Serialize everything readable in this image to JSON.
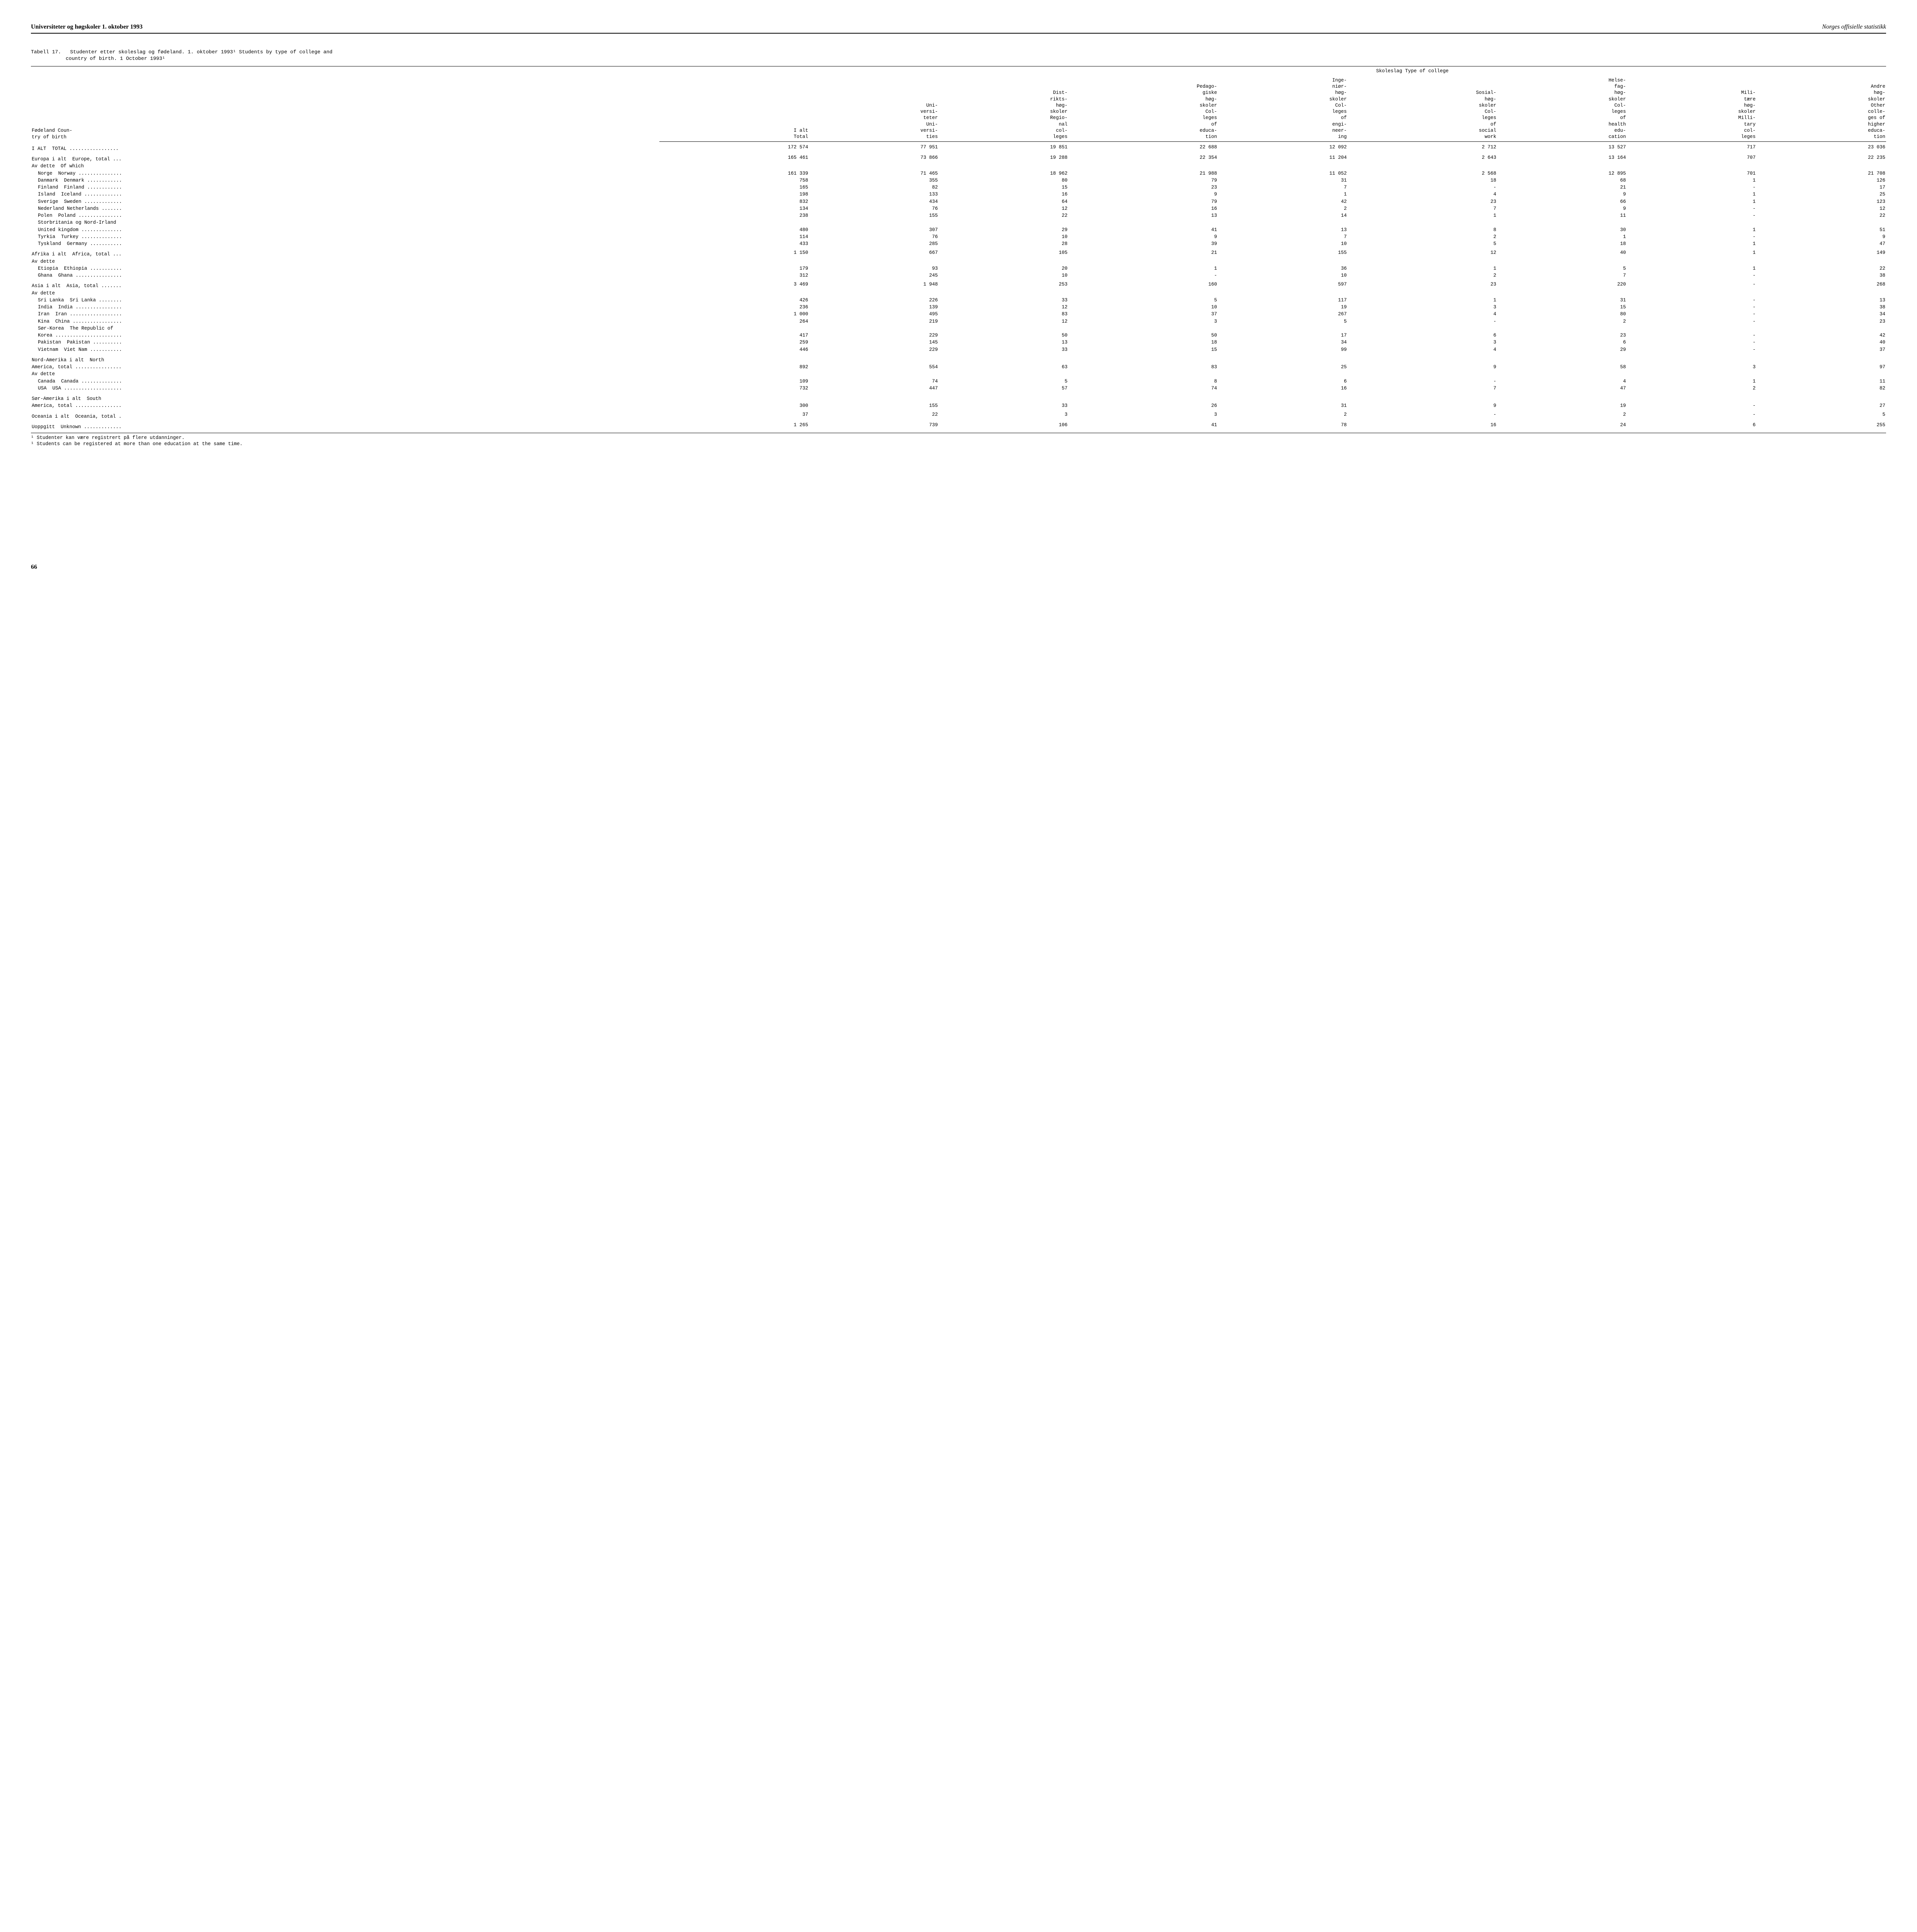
{
  "header": {
    "left": "Universiteter og høgskoler 1. oktober 1993",
    "right": "Norges offisielle statistikk"
  },
  "table_caption": {
    "no": "Tabell 17.",
    "title1": "Studenter etter skoleslag og fødeland. 1. oktober 1993¹  Students by type of college and",
    "title2": "country of birth.  1 October 1993¹"
  },
  "columns": {
    "c0": "Fødeland  Coun-\ntry of birth",
    "span": "Skoleslag  Type of college",
    "c1": "I alt\nTotal",
    "c2": "Uni-\nversi-\nteter\nUni-\nversi-\nties",
    "c3": "Dist-\nrikts-\nhøg-\nskoler\nRegio-\nnal\ncol-\nleges",
    "c4": "Pedago-\ngiske\nhøg-\nskoler\nCol-\nleges\nof\neduca-\ntion",
    "c5": "Inge-\nniør-\nhøg-\nskoler\nCol-\nleges\nof\nengi-\nneer-\ning",
    "c6": "Sosial-\nhøg-\nskoler\nCol-\nleges\nof\nsocial\nwork",
    "c7": "Helse-\nfag-\nhøg-\nskoler\nCol-\nleges\nof\nhealth\nedu-\ncation",
    "c8": "Mili-\ntære\nhøg-\nskoler\nMilli-\ntary\ncol-\nleges",
    "c9": "Andre\nhøg-\nskoler\nOther\ncolle-\nges of\nhigher\neduca-\ntion"
  },
  "rows": [
    {
      "label": "I ALT  TOTAL .................",
      "v": [
        "172 574",
        "77 951",
        "19 851",
        "22 688",
        "12 092",
        "2 712",
        "13 527",
        "717",
        "23 036"
      ],
      "group": true
    },
    {
      "label": "Europa i alt  Europe, total ...",
      "v": [
        "165 461",
        "73 866",
        "19 288",
        "22 354",
        "11 204",
        "2 643",
        "13 164",
        "707",
        "22 235"
      ],
      "group": true
    },
    {
      "label": "Av dette  Of which",
      "v": [
        "",
        "",
        "",
        "",
        "",
        "",
        "",
        "",
        ""
      ],
      "sub": true
    },
    {
      "label": "Norge  Norway ...............",
      "v": [
        "161 339",
        "71 465",
        "18 962",
        "21 988",
        "11 052",
        "2 568",
        "12 895",
        "701",
        "21 708"
      ],
      "indent": true
    },
    {
      "label": "Danmark  Denmark ............",
      "v": [
        "758",
        "355",
        "80",
        "79",
        "31",
        "18",
        "68",
        "1",
        "126"
      ],
      "indent": true
    },
    {
      "label": "Finland  Finland ............",
      "v": [
        "165",
        "82",
        "15",
        "23",
        "7",
        "-",
        "21",
        "-",
        "17"
      ],
      "indent": true
    },
    {
      "label": "Island  Iceland .............",
      "v": [
        "198",
        "133",
        "16",
        "9",
        "1",
        "4",
        "9",
        "1",
        "25"
      ],
      "indent": true
    },
    {
      "label": "Sverige  Sweden .............",
      "v": [
        "832",
        "434",
        "64",
        "79",
        "42",
        "23",
        "66",
        "1",
        "123"
      ],
      "indent": true
    },
    {
      "label": "Nederland Netherlands .......",
      "v": [
        "134",
        "76",
        "12",
        "16",
        "2",
        "7",
        "9",
        "-",
        "12"
      ],
      "indent": true
    },
    {
      "label": "Polen  Poland ...............",
      "v": [
        "238",
        "155",
        "22",
        "13",
        "14",
        "1",
        "11",
        "-",
        "22"
      ],
      "indent": true
    },
    {
      "label": "Storbritania og Nord-Irland",
      "v": [
        "",
        "",
        "",
        "",
        "",
        "",
        "",
        "",
        ""
      ],
      "indent": true
    },
    {
      "label": "United kingdom ..............",
      "v": [
        "480",
        "307",
        "29",
        "41",
        "13",
        "8",
        "30",
        "1",
        "51"
      ],
      "indent": true
    },
    {
      "label": "Tyrkia  Turkey ..............",
      "v": [
        "114",
        "76",
        "10",
        "9",
        "7",
        "2",
        "1",
        "-",
        "9"
      ],
      "indent": true
    },
    {
      "label": "Tyskland  Germany ...........",
      "v": [
        "433",
        "285",
        "28",
        "39",
        "10",
        "5",
        "18",
        "1",
        "47"
      ],
      "indent": true
    },
    {
      "label": "Afrika i alt  Africa, total ...",
      "v": [
        "1 150",
        "667",
        "105",
        "21",
        "155",
        "12",
        "40",
        "1",
        "149"
      ],
      "group": true
    },
    {
      "label": "Av dette",
      "v": [
        "",
        "",
        "",
        "",
        "",
        "",
        "",
        "",
        ""
      ],
      "sub": true
    },
    {
      "label": "Etiopia  Ethiopia ...........",
      "v": [
        "179",
        "93",
        "20",
        "1",
        "36",
        "1",
        "5",
        "1",
        "22"
      ],
      "indent": true
    },
    {
      "label": "Ghana  Ghana ................",
      "v": [
        "312",
        "245",
        "10",
        "-",
        "10",
        "2",
        "7",
        "-",
        "38"
      ],
      "indent": true
    },
    {
      "label": "Asia i alt  Asia, total .......",
      "v": [
        "3 469",
        "1 948",
        "253",
        "160",
        "597",
        "23",
        "220",
        "-",
        "268"
      ],
      "group": true
    },
    {
      "label": "Av dette",
      "v": [
        "",
        "",
        "",
        "",
        "",
        "",
        "",
        "",
        ""
      ],
      "sub": true
    },
    {
      "label": "Sri Lanka  Sri Lanka ........",
      "v": [
        "426",
        "226",
        "33",
        "5",
        "117",
        "1",
        "31",
        "-",
        "13"
      ],
      "indent": true
    },
    {
      "label": "India  India ................",
      "v": [
        "236",
        "139",
        "12",
        "10",
        "19",
        "3",
        "15",
        "-",
        "38"
      ],
      "indent": true
    },
    {
      "label": "Iran  Iran ..................",
      "v": [
        "1 000",
        "495",
        "83",
        "37",
        "267",
        "4",
        "80",
        "-",
        "34"
      ],
      "indent": true
    },
    {
      "label": "Kina  China .................",
      "v": [
        "264",
        "219",
        "12",
        "3",
        "5",
        "-",
        "2",
        "-",
        "23"
      ],
      "indent": true
    },
    {
      "label": "Sør-Korea  The Republic of",
      "v": [
        "",
        "",
        "",
        "",
        "",
        "",
        "",
        "",
        ""
      ],
      "indent": true
    },
    {
      "label": "Korea .......................",
      "v": [
        "417",
        "229",
        "50",
        "50",
        "17",
        "6",
        "23",
        "-",
        "42"
      ],
      "indent": true
    },
    {
      "label": "Pakistan  Pakistan ..........",
      "v": [
        "259",
        "145",
        "13",
        "18",
        "34",
        "3",
        "6",
        "-",
        "40"
      ],
      "indent": true
    },
    {
      "label": "Vietnam  Viet Nam ...........",
      "v": [
        "446",
        "229",
        "33",
        "15",
        "99",
        "4",
        "29",
        "-",
        "37"
      ],
      "indent": true
    },
    {
      "label": "Nord-Amerika i alt  North",
      "v": [
        "",
        "",
        "",
        "",
        "",
        "",
        "",
        "",
        ""
      ],
      "group": true
    },
    {
      "label": "America, total ................",
      "v": [
        "892",
        "554",
        "63",
        "83",
        "25",
        "9",
        "58",
        "3",
        "97"
      ]
    },
    {
      "label": "Av dette",
      "v": [
        "",
        "",
        "",
        "",
        "",
        "",
        "",
        "",
        ""
      ],
      "sub": true
    },
    {
      "label": "Canada  Canada ..............",
      "v": [
        "109",
        "74",
        "5",
        "8",
        "6",
        "-",
        "4",
        "1",
        "11"
      ],
      "indent": true
    },
    {
      "label": "USA  USA ....................",
      "v": [
        "732",
        "447",
        "57",
        "74",
        "16",
        "7",
        "47",
        "2",
        "82"
      ],
      "indent": true
    },
    {
      "label": "Sør-Amerika i alt  South",
      "v": [
        "",
        "",
        "",
        "",
        "",
        "",
        "",
        "",
        ""
      ],
      "group": true
    },
    {
      "label": "America, total ................",
      "v": [
        "300",
        "155",
        "33",
        "26",
        "31",
        "9",
        "19",
        "-",
        "27"
      ]
    },
    {
      "label": "Oceania i alt  Oceania, total .",
      "v": [
        "37",
        "22",
        "3",
        "3",
        "2",
        "-",
        "2",
        "-",
        "5"
      ],
      "group": true
    },
    {
      "label": "Uoppgitt  Unknown .............",
      "v": [
        "1 265",
        "739",
        "106",
        "41",
        "78",
        "16",
        "24",
        "6",
        "255"
      ],
      "group": true
    }
  ],
  "footnotes": {
    "f1": "¹ Studenter kan være registrert på flere utdanninger.",
    "f2": "¹ Students can be registered at more than one education at the same time."
  },
  "page_number": "66"
}
